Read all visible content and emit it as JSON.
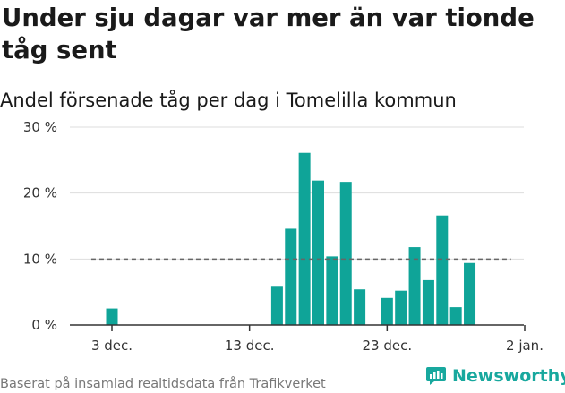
{
  "title": "Under sju dagar var mer än var tionde tåg sent",
  "subtitle": "Andel försenade tåg per dag i Tomelilla kommun",
  "footer": "Baserat på insamlad realtidsdata från Trafikverket",
  "brand": {
    "name": "Newsworthy",
    "icon": "newsworthy-logo-icon",
    "color": "#18a89e"
  },
  "colors": {
    "bar": "#0fa498",
    "threshold": "#666666",
    "grid": "#dddddd",
    "axis": "#333333"
  },
  "chart_data": {
    "type": "bar",
    "title": "Under sju dagar var mer än var tionde tåg sent",
    "subtitle": "Andel försenade tåg per dag i Tomelilla kommun",
    "xlabel": "",
    "ylabel": "",
    "ylim": [
      0,
      30
    ],
    "yticks": [
      0,
      10,
      20,
      30
    ],
    "ytick_labels": [
      "0 %",
      "10 %",
      "20 %",
      "30 %"
    ],
    "xlim": [
      -3,
      30
    ],
    "xticks": [
      0,
      10,
      20,
      30
    ],
    "xtick_labels": [
      "3 dec.",
      "13 dec.",
      "23 dec.",
      "2 jan."
    ],
    "x_axis_note": "days from 3 dec. (tick labels show dates)",
    "grid": true,
    "threshold_line": {
      "value": 10,
      "x_start": -1.5,
      "x_end": 29,
      "style": "dashed"
    },
    "bars": [
      {
        "date": "3 dec.",
        "value": 2.5
      },
      {
        "date": "15 dec.",
        "value": 5.8
      },
      {
        "date": "16 dec.",
        "value": 14.6
      },
      {
        "date": "17 dec.",
        "value": 26.1
      },
      {
        "date": "18 dec.",
        "value": 21.9
      },
      {
        "date": "19 dec.",
        "value": 10.4
      },
      {
        "date": "20 dec.",
        "value": 21.7
      },
      {
        "date": "21 dec.",
        "value": 5.4
      },
      {
        "date": "22 dec.",
        "value": 0
      },
      {
        "date": "23 dec.",
        "value": 4.1
      },
      {
        "date": "24 dec.",
        "value": 5.2
      },
      {
        "date": "25 dec.",
        "value": 11.8
      },
      {
        "date": "26 dec.",
        "value": 6.8
      },
      {
        "date": "27 dec.",
        "value": 16.6
      },
      {
        "date": "28 dec.",
        "value": 2.7
      },
      {
        "date": "29 dec.",
        "value": 9.4
      }
    ]
  }
}
